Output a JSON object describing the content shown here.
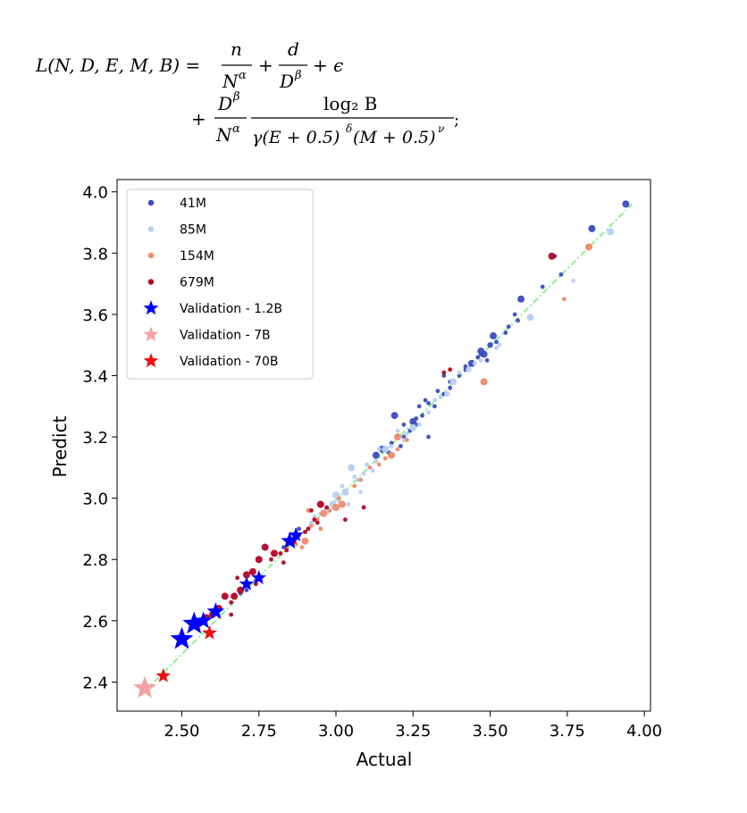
{
  "formula": {
    "lhs": "L(N, D, E, M, B) =",
    "t1_num": "n",
    "t1_den": "N",
    "t1_den_sup": "α",
    "plus1": "+",
    "t2_num": "d",
    "t2_den": "D",
    "t2_den_sup": "β",
    "plus_eps": "+ ϵ",
    "plus2": "+",
    "t3_num": "D",
    "t3_num_sup": "β",
    "t3_den": "N",
    "t3_den_sup": "α",
    "t4_num": "log₂ B",
    "t4_den_a": "γ(E + 0.5)",
    "t4_den_a_sup": "δ",
    "t4_den_b": "(M + 0.5)",
    "t4_den_b_sup": "ν",
    "tail": ";"
  },
  "chart_data": {
    "type": "scatter",
    "xlabel": "Actual",
    "ylabel": "Predict",
    "xlim": [
      2.29,
      4.02
    ],
    "ylim": [
      2.305,
      4.04
    ],
    "xticks": [
      "2.50",
      "2.75",
      "3.00",
      "3.25",
      "3.50",
      "3.75",
      "4.00"
    ],
    "xtick_values": [
      2.5,
      2.75,
      3.0,
      3.25,
      3.5,
      3.75,
      4.0
    ],
    "yticks": [
      "2.4",
      "2.6",
      "2.8",
      "3.0",
      "3.2",
      "3.4",
      "3.6",
      "3.8",
      "4.0"
    ],
    "ytick_values": [
      2.4,
      2.6,
      2.8,
      3.0,
      3.2,
      3.4,
      3.6,
      3.8,
      4.0
    ],
    "reference_line": {
      "from": [
        2.38,
        2.37
      ],
      "to": [
        3.96,
        3.96
      ],
      "color": "#90ee90",
      "style": "dash-dot"
    },
    "legend_position": "upper-left",
    "legend": [
      {
        "label": "41M",
        "marker": "dot",
        "color": "#3b4cc0"
      },
      {
        "label": "85M",
        "marker": "dot",
        "color": "#b8cff1"
      },
      {
        "label": "154M",
        "marker": "dot",
        "color": "#f08a6a"
      },
      {
        "label": "679M",
        "marker": "dot",
        "color": "#b40426"
      },
      {
        "label": "Validation - 1.2B",
        "marker": "star",
        "color": "#0000ff"
      },
      {
        "label": "Validation - 7B",
        "marker": "star",
        "color": "#f4a3a3"
      },
      {
        "label": "Validation - 70B",
        "marker": "star",
        "color": "#ee1111"
      }
    ],
    "series": [
      {
        "name": "41M",
        "color": "#3b4cc0",
        "points": [
          [
            3.94,
            3.96,
            2
          ],
          [
            3.83,
            3.88,
            2
          ],
          [
            3.71,
            3.79,
            1
          ],
          [
            3.6,
            3.65,
            2
          ],
          [
            3.58,
            3.6,
            1
          ],
          [
            3.51,
            3.53,
            2
          ],
          [
            3.5,
            3.5,
            1.5
          ],
          [
            3.48,
            3.47,
            2
          ],
          [
            3.46,
            3.46,
            1
          ],
          [
            3.44,
            3.44,
            2
          ],
          [
            3.42,
            3.43,
            1
          ],
          [
            3.4,
            3.4,
            1
          ],
          [
            3.37,
            3.38,
            1
          ],
          [
            3.35,
            3.34,
            1
          ],
          [
            3.32,
            3.3,
            1
          ],
          [
            3.3,
            3.31,
            1
          ],
          [
            3.28,
            3.27,
            1
          ],
          [
            3.26,
            3.26,
            1
          ],
          [
            3.25,
            3.25,
            2
          ],
          [
            3.24,
            3.22,
            1
          ],
          [
            3.22,
            3.2,
            1
          ],
          [
            3.19,
            3.27,
            2
          ],
          [
            3.21,
            3.17,
            1
          ],
          [
            3.18,
            3.18,
            1
          ],
          [
            3.17,
            3.15,
            1
          ],
          [
            3.15,
            3.16,
            2
          ],
          [
            3.13,
            3.14,
            2
          ],
          [
            3.3,
            3.2,
            1
          ],
          [
            3.27,
            3.3,
            1
          ],
          [
            3.42,
            3.42,
            1
          ],
          [
            3.47,
            3.48,
            2
          ],
          [
            3.49,
            3.45,
            1
          ],
          [
            3.56,
            3.56,
            1
          ],
          [
            3.52,
            3.51,
            1
          ],
          [
            3.55,
            3.54,
            1
          ],
          [
            3.67,
            3.69,
            1
          ],
          [
            3.73,
            3.73,
            1
          ],
          [
            3.35,
            3.4,
            1
          ],
          [
            3.33,
            3.35,
            1
          ],
          [
            3.29,
            3.32,
            1
          ],
          [
            3.26,
            3.24,
            1
          ],
          [
            3.22,
            3.24,
            1
          ],
          [
            2.74,
            2.73,
            1
          ],
          [
            2.71,
            2.7,
            1
          ],
          [
            2.69,
            2.69,
            1
          ],
          [
            2.86,
            2.86,
            1
          ],
          [
            2.83,
            2.84,
            1
          ],
          [
            2.88,
            2.9,
            1
          ],
          [
            3.37,
            3.36,
            1
          ],
          [
            3.47,
            3.47,
            1
          ],
          [
            3.59,
            3.58,
            1
          ]
        ]
      },
      {
        "name": "85M",
        "color": "#b8cff1",
        "points": [
          [
            3.89,
            3.87,
            2
          ],
          [
            3.77,
            3.71,
            1
          ],
          [
            3.63,
            3.59,
            2
          ],
          [
            3.53,
            3.5,
            1
          ],
          [
            3.52,
            3.49,
            1
          ],
          [
            3.47,
            3.45,
            1
          ],
          [
            3.43,
            3.42,
            1.5
          ],
          [
            3.38,
            3.38,
            2
          ],
          [
            3.36,
            3.34,
            1.5
          ],
          [
            3.32,
            3.32,
            1
          ],
          [
            3.3,
            3.28,
            1
          ],
          [
            3.27,
            3.24,
            1
          ],
          [
            3.25,
            3.23,
            2
          ],
          [
            3.23,
            3.21,
            1
          ],
          [
            3.2,
            3.22,
            1
          ],
          [
            3.16,
            3.16,
            2
          ],
          [
            3.13,
            3.12,
            1
          ],
          [
            3.11,
            3.1,
            1
          ],
          [
            3.09,
            3.08,
            1
          ],
          [
            3.07,
            3.06,
            1
          ],
          [
            3.05,
            3.1,
            2
          ],
          [
            3.03,
            3.02,
            2
          ],
          [
            3.02,
            3.04,
            1
          ],
          [
            3.0,
            3.01,
            2
          ],
          [
            2.99,
            2.98,
            2
          ],
          [
            2.97,
            2.96,
            2
          ],
          [
            2.95,
            2.95,
            1
          ],
          [
            2.93,
            2.94,
            1
          ],
          [
            2.92,
            2.92,
            1
          ],
          [
            3.06,
            3.07,
            1
          ],
          [
            3.08,
            3.02,
            1
          ],
          [
            3.1,
            3.11,
            1
          ],
          [
            3.12,
            3.09,
            1
          ],
          [
            3.04,
            2.98,
            1
          ],
          [
            3.01,
            2.99,
            1
          ],
          [
            3.14,
            3.16,
            1
          ],
          [
            3.18,
            3.17,
            1
          ],
          [
            3.22,
            3.19,
            1
          ],
          [
            3.34,
            3.33,
            1
          ],
          [
            3.4,
            3.41,
            1
          ],
          [
            3.45,
            3.44,
            1
          ]
        ]
      },
      {
        "name": "154M",
        "color": "#f08a6a",
        "points": [
          [
            3.82,
            3.82,
            2
          ],
          [
            3.74,
            3.65,
            1
          ],
          [
            3.48,
            3.38,
            2
          ],
          [
            3.2,
            3.2,
            2
          ],
          [
            3.18,
            3.14,
            2
          ],
          [
            3.16,
            3.13,
            1
          ],
          [
            3.14,
            3.11,
            1
          ],
          [
            3.11,
            3.1,
            1
          ],
          [
            3.08,
            3.06,
            1
          ],
          [
            3.06,
            3.04,
            1
          ],
          [
            3.02,
            2.98,
            2
          ],
          [
            3.0,
            2.97,
            2
          ],
          [
            2.98,
            2.96,
            1
          ],
          [
            2.96,
            2.95,
            2
          ],
          [
            2.94,
            2.93,
            1
          ],
          [
            2.92,
            2.91,
            1
          ],
          [
            2.9,
            2.86,
            2
          ],
          [
            2.88,
            2.88,
            1
          ],
          [
            2.87,
            2.85,
            1
          ],
          [
            2.84,
            2.84,
            1
          ],
          [
            2.6,
            2.63,
            1
          ],
          [
            3.2,
            3.16,
            1
          ],
          [
            3.23,
            3.19,
            1
          ],
          [
            3.01,
            3.0,
            1
          ],
          [
            2.91,
            2.96,
            1
          ],
          [
            2.95,
            2.9,
            1
          ],
          [
            2.89,
            2.84,
            1
          ]
        ]
      },
      {
        "name": "679M",
        "color": "#b40426",
        "points": [
          [
            3.7,
            3.79,
            2
          ],
          [
            3.09,
            2.97,
            1
          ],
          [
            3.03,
            2.93,
            1
          ],
          [
            2.95,
            2.98,
            2
          ],
          [
            2.93,
            2.93,
            1
          ],
          [
            2.92,
            2.96,
            1
          ],
          [
            2.91,
            2.9,
            1
          ],
          [
            2.9,
            2.89,
            1
          ],
          [
            2.88,
            2.88,
            1
          ],
          [
            2.86,
            2.86,
            2
          ],
          [
            2.84,
            2.83,
            1
          ],
          [
            2.82,
            2.82,
            1
          ],
          [
            2.8,
            2.82,
            2
          ],
          [
            2.79,
            2.8,
            1
          ],
          [
            2.77,
            2.84,
            2
          ],
          [
            2.75,
            2.8,
            2
          ],
          [
            2.73,
            2.76,
            2
          ],
          [
            2.71,
            2.75,
            2
          ],
          [
            2.69,
            2.7,
            2
          ],
          [
            2.67,
            2.68,
            2
          ],
          [
            2.66,
            2.66,
            1
          ],
          [
            2.64,
            2.68,
            2
          ],
          [
            2.62,
            2.64,
            2
          ],
          [
            2.6,
            2.62,
            2
          ],
          [
            2.58,
            2.61,
            2
          ],
          [
            2.66,
            2.62,
            1
          ],
          [
            2.68,
            2.74,
            1
          ],
          [
            2.74,
            2.72,
            1
          ],
          [
            2.83,
            2.79,
            1
          ],
          [
            2.94,
            2.92,
            1
          ],
          [
            2.97,
            2.97,
            1
          ],
          [
            3.35,
            3.41,
            1
          ],
          [
            3.37,
            3.42,
            1
          ]
        ]
      },
      {
        "name": "Validation - 1.2B",
        "marker": "star",
        "color": "#0000ff",
        "points": [
          [
            2.5,
            2.54,
            3
          ],
          [
            2.54,
            2.59,
            3
          ],
          [
            2.57,
            2.6,
            2
          ],
          [
            2.61,
            2.63,
            2
          ],
          [
            2.71,
            2.72,
            1.5
          ],
          [
            2.75,
            2.74,
            1.5
          ],
          [
            2.85,
            2.86,
            2
          ],
          [
            2.87,
            2.88,
            1.5
          ]
        ]
      },
      {
        "name": "Validation - 7B",
        "marker": "star",
        "color": "#f4a3a3",
        "points": [
          [
            2.38,
            2.38,
            3
          ]
        ]
      },
      {
        "name": "Validation - 70B",
        "marker": "star",
        "color": "#ee1111",
        "points": [
          [
            2.44,
            2.42,
            1.5
          ],
          [
            2.59,
            2.56,
            1.5
          ]
        ]
      }
    ]
  }
}
